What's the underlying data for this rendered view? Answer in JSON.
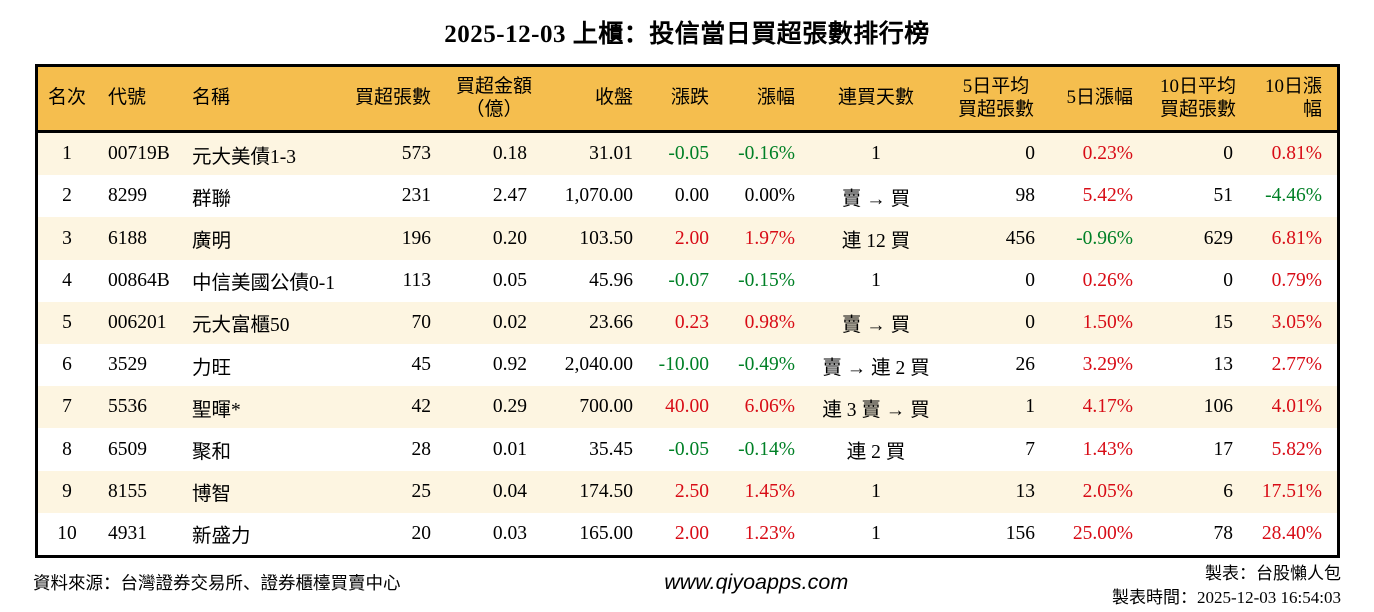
{
  "title": "2025-12-03 上櫃：投信當日買超張數排行榜",
  "table": {
    "headers": [
      "名次",
      "代號",
      "名稱",
      "買超張數",
      "買超金額\n（億）",
      "收盤",
      "漲跌",
      "漲幅",
      "連買天數",
      "5日平均\n買超張數",
      "5日漲幅",
      "10日平均\n買超張數",
      "10日漲幅"
    ],
    "rows": [
      [
        "1",
        "00719B",
        "元大美債1-3",
        "573",
        "0.18",
        "31.01",
        "-0.05",
        "-0.16%",
        "1",
        "0",
        "0.23%",
        "0",
        "0.81%"
      ],
      [
        "2",
        "8299",
        "群聯",
        "231",
        "2.47",
        "1,070.00",
        "0.00",
        "0.00%",
        "賣 → 買",
        "98",
        "5.42%",
        "51",
        "-4.46%"
      ],
      [
        "3",
        "6188",
        "廣明",
        "196",
        "0.20",
        "103.50",
        "2.00",
        "1.97%",
        "連 12 買",
        "456",
        "-0.96%",
        "629",
        "6.81%"
      ],
      [
        "4",
        "00864B",
        "中信美國公債0-1",
        "113",
        "0.05",
        "45.96",
        "-0.07",
        "-0.15%",
        "1",
        "0",
        "0.26%",
        "0",
        "0.79%"
      ],
      [
        "5",
        "006201",
        "元大富櫃50",
        "70",
        "0.02",
        "23.66",
        "0.23",
        "0.98%",
        "賣 → 買",
        "0",
        "1.50%",
        "15",
        "3.05%"
      ],
      [
        "6",
        "3529",
        "力旺",
        "45",
        "0.92",
        "2,040.00",
        "-10.00",
        "-0.49%",
        "賣 → 連 2 買",
        "26",
        "3.29%",
        "13",
        "2.77%"
      ],
      [
        "7",
        "5536",
        "聖暉*",
        "42",
        "0.29",
        "700.00",
        "40.00",
        "6.06%",
        "連 3 賣 → 買",
        "1",
        "4.17%",
        "106",
        "4.01%"
      ],
      [
        "8",
        "6509",
        "聚和",
        "28",
        "0.01",
        "35.45",
        "-0.05",
        "-0.14%",
        "連 2 買",
        "7",
        "1.43%",
        "17",
        "5.82%"
      ],
      [
        "9",
        "8155",
        "博智",
        "25",
        "0.04",
        "174.50",
        "2.50",
        "1.45%",
        "1",
        "13",
        "2.05%",
        "6",
        "17.51%"
      ],
      [
        "10",
        "4931",
        "新盛力",
        "20",
        "0.03",
        "165.00",
        "2.00",
        "1.23%",
        "1",
        "156",
        "25.00%",
        "78",
        "28.40%"
      ]
    ]
  },
  "footer": {
    "source": "資料來源：台灣證券交易所、證券櫃檯買賣中心",
    "website": "www.qiyoapps.com",
    "maker": "製表：台股懶人包",
    "generated_at": "製表時間：2025-12-03 16:54:03"
  },
  "theme": {
    "header_bg": "#f5be4e",
    "row_odd_bg": "#fdf5e1",
    "row_even_bg": "#ffffff",
    "up_color": "#d80c16",
    "down_color": "#008026",
    "neutral_color": "#000000",
    "border_color": "#000000"
  }
}
